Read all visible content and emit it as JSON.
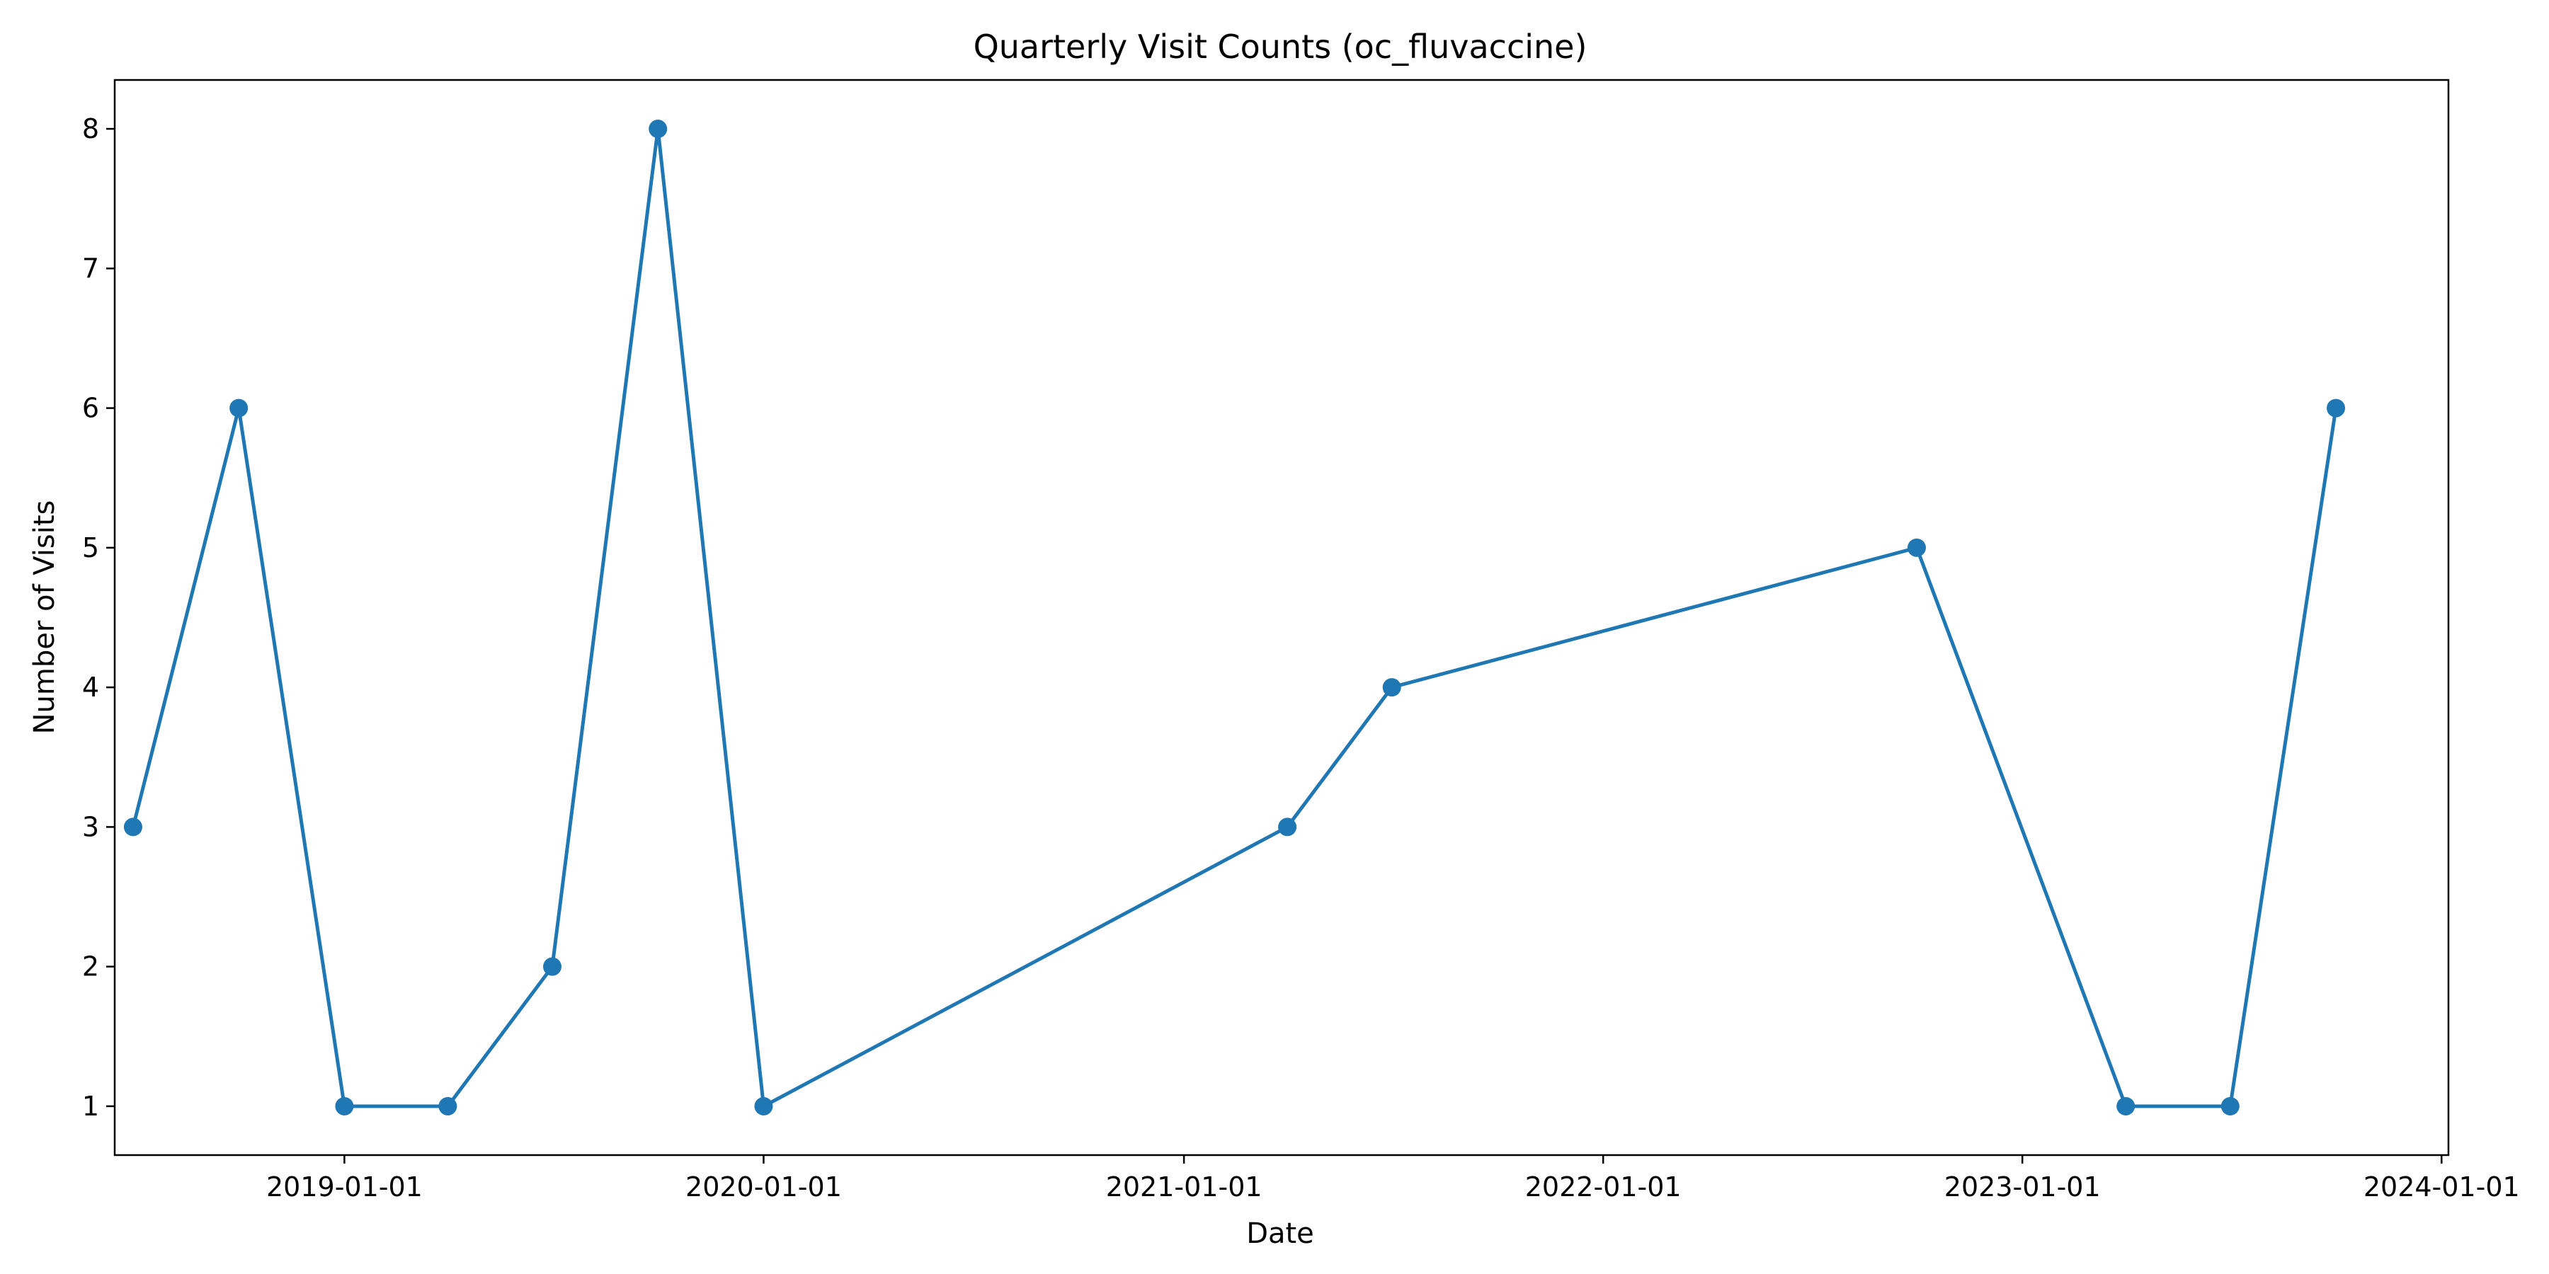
{
  "chart_data": {
    "type": "line",
    "title": "Quarterly Visit Counts (oc_fluvaccine)",
    "xlabel": "Date",
    "ylabel": "Number of Visits",
    "x_ticks": [
      "2019-01-01",
      "2020-01-01",
      "2021-01-01",
      "2022-01-01",
      "2023-01-01",
      "2024-01-01"
    ],
    "y_ticks": [
      "1",
      "2",
      "3",
      "4",
      "5",
      "6",
      "7",
      "8"
    ],
    "xlim": [
      "2018-06-15",
      "2024-01-07"
    ],
    "ylim": [
      0.65,
      8.35
    ],
    "grid": false,
    "legend": false,
    "series": [
      {
        "color": "#1f77b4",
        "marker": "circle",
        "points": [
          {
            "x": "2018-07-01",
            "y": 3
          },
          {
            "x": "2018-10-01",
            "y": 6
          },
          {
            "x": "2019-01-01",
            "y": 1
          },
          {
            "x": "2019-04-01",
            "y": 1
          },
          {
            "x": "2019-07-01",
            "y": 2
          },
          {
            "x": "2019-10-01",
            "y": 8
          },
          {
            "x": "2020-01-01",
            "y": 1
          },
          {
            "x": "2021-04-01",
            "y": 3
          },
          {
            "x": "2021-07-01",
            "y": 4
          },
          {
            "x": "2022-10-01",
            "y": 5
          },
          {
            "x": "2023-04-01",
            "y": 1
          },
          {
            "x": "2023-07-01",
            "y": 1
          },
          {
            "x": "2023-10-01",
            "y": 6
          }
        ]
      }
    ]
  }
}
